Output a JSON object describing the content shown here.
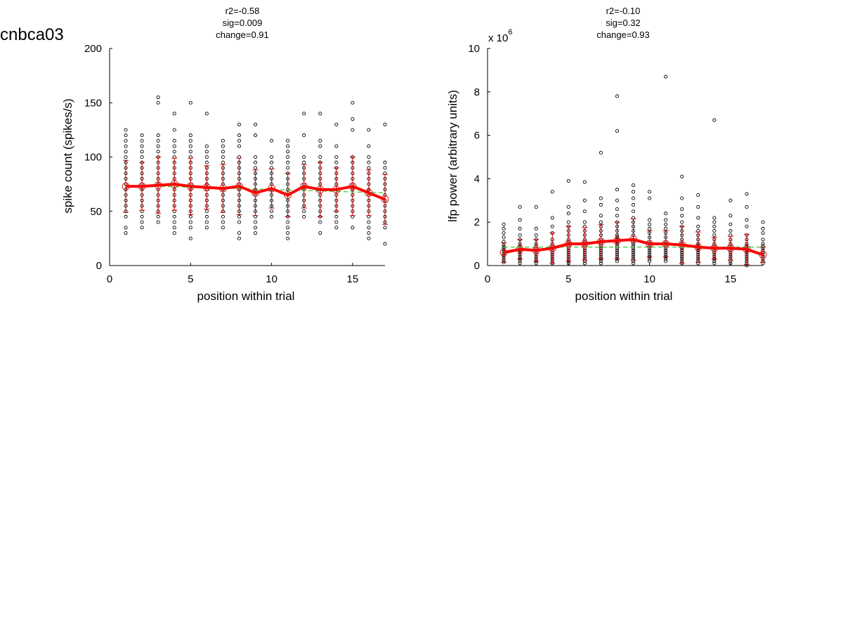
{
  "figure": {
    "title": "cnbca03"
  },
  "chart_data": [
    {
      "type": "scatter",
      "stats": [
        "r2=-0.58",
        "sig=0.009",
        "change=0.91"
      ],
      "xlabel": "position within trial",
      "ylabel": "spike count (spikes/s)",
      "xlim": [
        0,
        17
      ],
      "ylim": [
        0,
        200
      ],
      "xticks": [
        0,
        5,
        10,
        15
      ],
      "yticks": [
        0,
        50,
        100,
        150,
        200
      ],
      "exponent_label": "",
      "grid": false,
      "x": [
        1,
        2,
        3,
        4,
        5,
        6,
        7,
        8,
        9,
        10,
        11,
        12,
        13,
        14,
        15,
        16,
        17
      ],
      "mean": [
        73,
        73,
        74,
        75,
        73,
        72,
        71,
        73,
        67,
        71,
        65,
        73,
        70,
        70,
        73,
        67,
        61
      ],
      "sd": [
        24,
        22,
        26,
        24,
        26,
        20,
        22,
        26,
        21,
        18,
        20,
        20,
        25,
        20,
        27,
        21,
        23
      ],
      "fit": {
        "x": [
          1,
          17
        ],
        "y": [
          74,
          67
        ]
      },
      "trials": [
        [
          30,
          35,
          45,
          50,
          55,
          60,
          65,
          70,
          75,
          80,
          85,
          90,
          95,
          100,
          105,
          110,
          115,
          120,
          125
        ],
        [
          35,
          40,
          45,
          50,
          55,
          60,
          65,
          70,
          75,
          80,
          85,
          90,
          95,
          100,
          105,
          110,
          115,
          120
        ],
        [
          40,
          45,
          50,
          55,
          60,
          65,
          70,
          75,
          80,
          85,
          90,
          95,
          100,
          105,
          110,
          115,
          120,
          150,
          155
        ],
        [
          30,
          35,
          40,
          45,
          50,
          55,
          60,
          65,
          70,
          75,
          80,
          85,
          90,
          95,
          100,
          105,
          110,
          115,
          125,
          140
        ],
        [
          25,
          35,
          40,
          45,
          50,
          55,
          60,
          65,
          70,
          75,
          80,
          85,
          90,
          95,
          100,
          105,
          110,
          115,
          120,
          150
        ],
        [
          35,
          40,
          45,
          50,
          55,
          60,
          65,
          70,
          75,
          80,
          85,
          90,
          95,
          100,
          105,
          110,
          140
        ],
        [
          35,
          40,
          45,
          50,
          55,
          60,
          65,
          70,
          75,
          80,
          85,
          90,
          95,
          100,
          105,
          110,
          115
        ],
        [
          25,
          30,
          40,
          45,
          50,
          55,
          60,
          65,
          70,
          75,
          80,
          85,
          90,
          95,
          100,
          110,
          115,
          120,
          130
        ],
        [
          30,
          35,
          40,
          45,
          50,
          55,
          60,
          65,
          70,
          75,
          80,
          85,
          90,
          95,
          100,
          120,
          130
        ],
        [
          45,
          50,
          55,
          60,
          65,
          70,
          75,
          80,
          85,
          90,
          95,
          100,
          115
        ],
        [
          25,
          30,
          35,
          40,
          45,
          50,
          55,
          60,
          65,
          70,
          75,
          80,
          85,
          90,
          95,
          100,
          105,
          110,
          115
        ],
        [
          45,
          50,
          55,
          60,
          65,
          70,
          75,
          80,
          85,
          90,
          95,
          100,
          120,
          140
        ],
        [
          30,
          40,
          45,
          50,
          55,
          60,
          65,
          70,
          75,
          80,
          85,
          90,
          95,
          100,
          110,
          115,
          140
        ],
        [
          35,
          40,
          45,
          50,
          55,
          60,
          65,
          70,
          75,
          80,
          85,
          90,
          95,
          100,
          110,
          130
        ],
        [
          35,
          45,
          50,
          55,
          60,
          65,
          70,
          75,
          80,
          85,
          90,
          95,
          100,
          125,
          135,
          150
        ],
        [
          25,
          30,
          35,
          40,
          45,
          50,
          55,
          60,
          65,
          70,
          75,
          80,
          85,
          90,
          95,
          100,
          110,
          125
        ],
        [
          20,
          35,
          40,
          45,
          50,
          55,
          60,
          65,
          70,
          75,
          80,
          85,
          90,
          95,
          130
        ]
      ]
    },
    {
      "type": "scatter",
      "stats": [
        "r2=-0.10",
        "sig=0.32",
        "change=0.93"
      ],
      "xlabel": "position within trial",
      "ylabel": "lfp power (arbitrary units)",
      "xlim": [
        0,
        17
      ],
      "ylim": [
        0,
        10
      ],
      "xticks": [
        0,
        5,
        10,
        15
      ],
      "yticks": [
        0,
        2,
        4,
        6,
        8,
        10
      ],
      "exponent_label": "x 10",
      "exponent_power": "6",
      "grid": false,
      "x": [
        1,
        2,
        3,
        4,
        5,
        6,
        7,
        8,
        9,
        10,
        11,
        12,
        13,
        14,
        15,
        16,
        17
      ],
      "mean": [
        0.6,
        0.75,
        0.7,
        0.8,
        1.0,
        1.0,
        1.1,
        1.15,
        1.2,
        1.0,
        1.0,
        0.95,
        0.85,
        0.8,
        0.8,
        0.75,
        0.5
      ],
      "sd": [
        0.45,
        0.45,
        0.5,
        0.7,
        0.8,
        0.75,
        0.8,
        0.85,
        0.95,
        0.6,
        0.6,
        0.85,
        0.7,
        0.5,
        0.55,
        0.7,
        0.35
      ],
      "fit": {
        "x": [
          1,
          17
        ],
        "y": [
          0.85,
          0.85
        ]
      },
      "trials": [
        [
          0.15,
          0.25,
          0.35,
          0.45,
          0.55,
          0.65,
          0.75,
          0.85,
          0.95,
          1.1,
          1.3,
          1.5,
          1.7,
          1.9
        ],
        [
          0.1,
          0.2,
          0.3,
          0.4,
          0.5,
          0.6,
          0.7,
          0.8,
          0.9,
          1.0,
          1.2,
          1.4,
          1.7,
          2.1,
          2.7
        ],
        [
          0.1,
          0.2,
          0.3,
          0.4,
          0.5,
          0.6,
          0.7,
          0.8,
          0.9,
          1.0,
          1.2,
          1.4,
          1.7,
          2.7
        ],
        [
          0.1,
          0.2,
          0.3,
          0.4,
          0.5,
          0.6,
          0.7,
          0.8,
          0.9,
          1.0,
          1.2,
          1.5,
          1.8,
          2.2,
          3.4
        ],
        [
          0.1,
          0.2,
          0.3,
          0.4,
          0.5,
          0.6,
          0.7,
          0.8,
          0.9,
          1.0,
          1.1,
          1.2,
          1.4,
          1.6,
          1.8,
          2.0,
          2.4,
          2.7,
          3.9
        ],
        [
          0.1,
          0.2,
          0.3,
          0.4,
          0.5,
          0.6,
          0.7,
          0.8,
          0.9,
          1.0,
          1.1,
          1.2,
          1.4,
          1.6,
          1.8,
          2.0,
          2.5,
          3.0,
          3.85
        ],
        [
          0.1,
          0.2,
          0.3,
          0.4,
          0.5,
          0.6,
          0.7,
          0.8,
          0.9,
          1.0,
          1.1,
          1.2,
          1.4,
          1.6,
          1.8,
          2.0,
          2.3,
          2.8,
          3.1,
          5.2
        ],
        [
          0.2,
          0.3,
          0.4,
          0.5,
          0.6,
          0.7,
          0.8,
          0.9,
          1.0,
          1.1,
          1.2,
          1.3,
          1.4,
          1.6,
          1.8,
          2.0,
          2.3,
          2.6,
          3.0,
          3.5,
          6.2,
          7.8
        ],
        [
          0.1,
          0.2,
          0.3,
          0.4,
          0.5,
          0.6,
          0.7,
          0.8,
          0.9,
          1.0,
          1.1,
          1.2,
          1.4,
          1.6,
          1.8,
          2.0,
          2.2,
          2.5,
          2.8,
          3.1,
          3.4,
          3.7
        ],
        [
          0.2,
          0.3,
          0.4,
          0.5,
          0.6,
          0.7,
          0.8,
          0.9,
          1.0,
          1.1,
          1.3,
          1.5,
          1.7,
          1.9,
          2.1,
          3.1,
          3.4
        ],
        [
          0.2,
          0.3,
          0.4,
          0.5,
          0.6,
          0.7,
          0.8,
          0.9,
          1.0,
          1.1,
          1.3,
          1.5,
          1.7,
          1.9,
          2.1,
          2.4,
          8.7
        ],
        [
          0.1,
          0.2,
          0.3,
          0.4,
          0.5,
          0.6,
          0.7,
          0.8,
          0.9,
          1.0,
          1.2,
          1.4,
          1.6,
          1.8,
          2.0,
          2.3,
          2.6,
          3.1,
          4.1
        ],
        [
          0.1,
          0.2,
          0.3,
          0.4,
          0.5,
          0.6,
          0.7,
          0.8,
          0.9,
          1.0,
          1.2,
          1.4,
          1.6,
          1.8,
          2.2,
          2.7,
          3.25
        ],
        [
          0.1,
          0.2,
          0.3,
          0.4,
          0.5,
          0.6,
          0.7,
          0.8,
          0.9,
          1.0,
          1.2,
          1.4,
          1.6,
          1.8,
          2.0,
          2.2,
          6.7
        ],
        [
          0.1,
          0.2,
          0.3,
          0.4,
          0.5,
          0.6,
          0.7,
          0.8,
          0.9,
          1.0,
          1.2,
          1.4,
          1.6,
          1.9,
          2.3,
          3.0
        ],
        [
          0.0,
          0.1,
          0.2,
          0.3,
          0.4,
          0.5,
          0.6,
          0.7,
          0.8,
          0.9,
          1.0,
          1.2,
          1.4,
          1.8,
          2.1,
          2.7,
          3.3
        ],
        [
          0.1,
          0.2,
          0.3,
          0.4,
          0.5,
          0.6,
          0.7,
          0.8,
          0.9,
          1.0,
          1.2,
          1.5,
          1.7,
          2.0
        ]
      ]
    }
  ]
}
